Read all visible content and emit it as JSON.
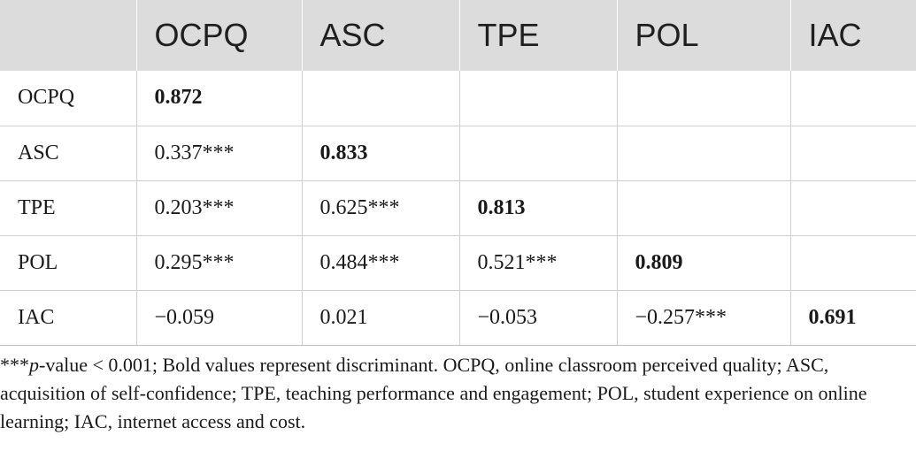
{
  "table": {
    "headers": [
      "",
      "OCPQ",
      "ASC",
      "TPE",
      "POL",
      "IAC"
    ],
    "rows": [
      {
        "label": "OCPQ",
        "cells": [
          {
            "v": "0.872",
            "bold": true
          },
          {
            "v": "",
            "bold": false
          },
          {
            "v": "",
            "bold": false
          },
          {
            "v": "",
            "bold": false
          },
          {
            "v": "",
            "bold": false
          }
        ]
      },
      {
        "label": "ASC",
        "cells": [
          {
            "v": "0.337***",
            "bold": false
          },
          {
            "v": "0.833",
            "bold": true
          },
          {
            "v": "",
            "bold": false
          },
          {
            "v": "",
            "bold": false
          },
          {
            "v": "",
            "bold": false
          }
        ]
      },
      {
        "label": "TPE",
        "cells": [
          {
            "v": "0.203***",
            "bold": false
          },
          {
            "v": "0.625***",
            "bold": false
          },
          {
            "v": "0.813",
            "bold": true
          },
          {
            "v": "",
            "bold": false
          },
          {
            "v": "",
            "bold": false
          }
        ]
      },
      {
        "label": "POL",
        "cells": [
          {
            "v": "0.295***",
            "bold": false
          },
          {
            "v": "0.484***",
            "bold": false
          },
          {
            "v": "0.521***",
            "bold": false
          },
          {
            "v": "0.809",
            "bold": true
          },
          {
            "v": "",
            "bold": false
          }
        ]
      },
      {
        "label": "IAC",
        "cells": [
          {
            "v": "−0.059",
            "bold": false
          },
          {
            "v": "0.021",
            "bold": false
          },
          {
            "v": "−0.053",
            "bold": false
          },
          {
            "v": "−0.257***",
            "bold": false
          },
          {
            "v": "0.691",
            "bold": true
          }
        ]
      }
    ]
  },
  "footnote": {
    "stars": "***",
    "p_label": "p",
    "text": "-value < 0.001; Bold values represent discriminant. OCPQ, online classroom perceived quality; ASC, acquisition of self-confidence; TPE, teaching performance and engagement; POL, student experience on online learning; IAC, internet access and cost."
  }
}
